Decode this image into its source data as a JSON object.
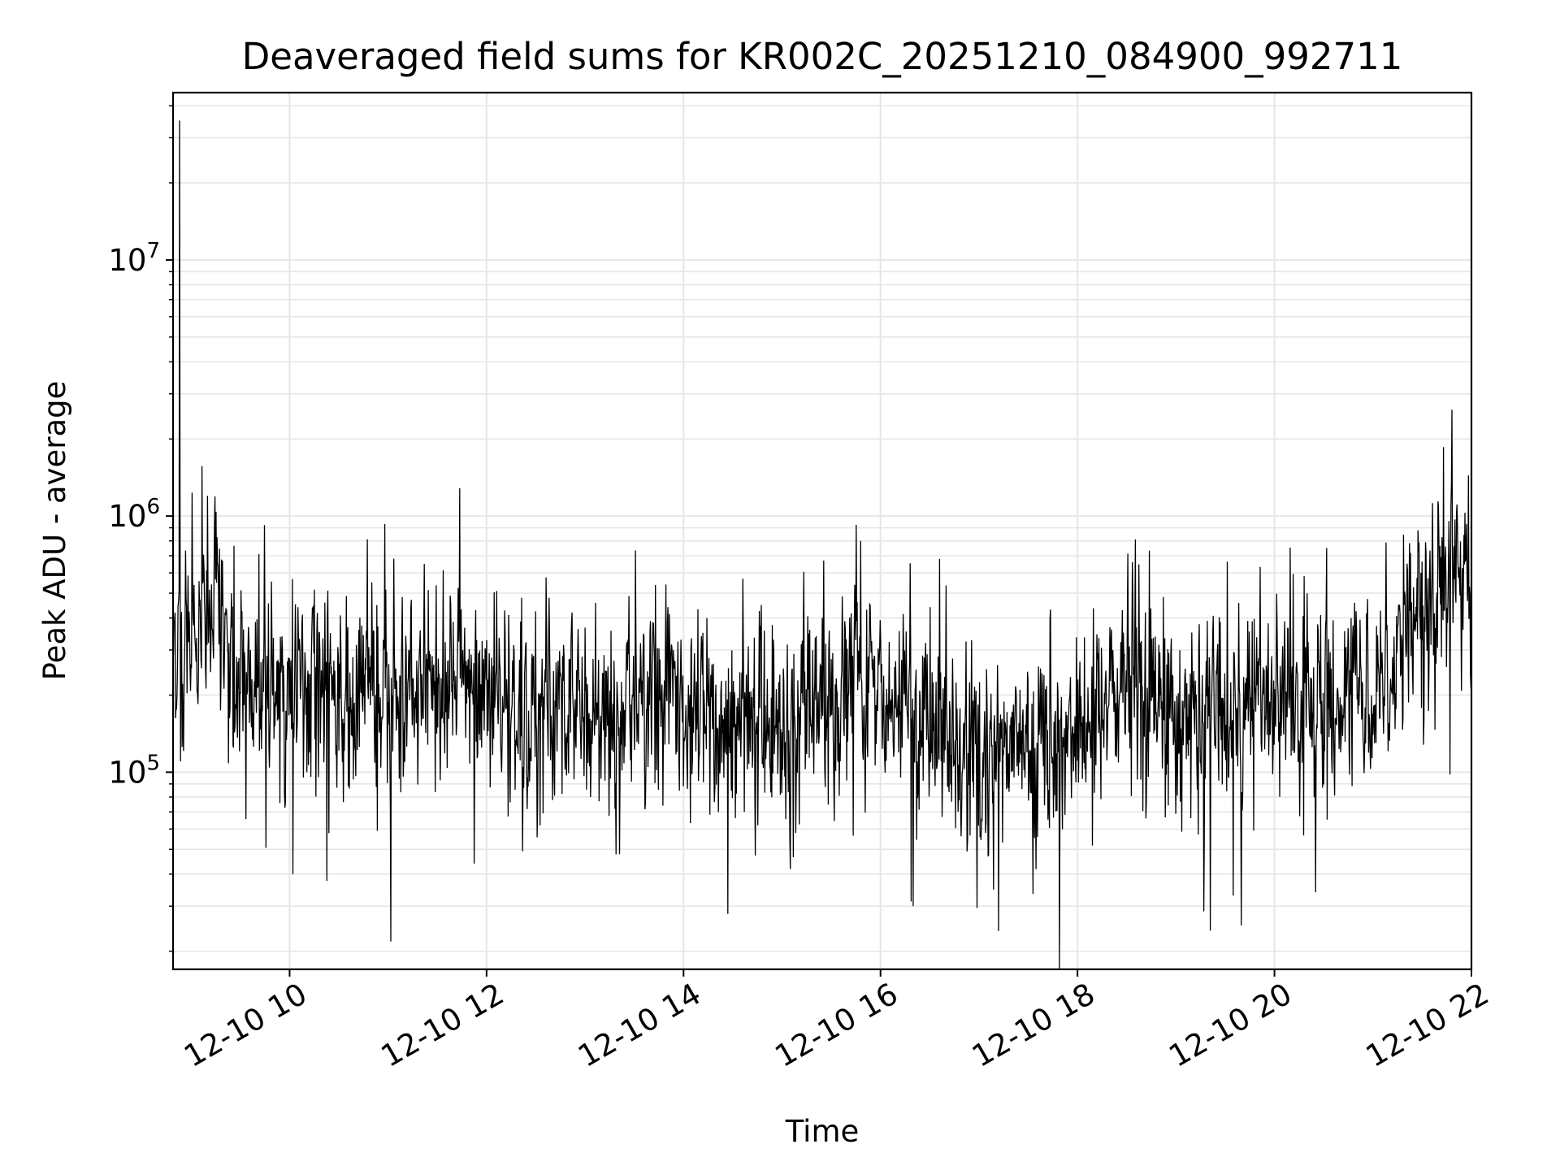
{
  "chart_data": {
    "type": "line",
    "title": "Deaveraged field sums for KR002C_20251210_084900_992711",
    "xlabel": "Time",
    "ylabel": "Peak ADU - average",
    "yscale": "log",
    "xlim": [
      "12-10 08:49",
      "12-10 22:00"
    ],
    "ylim": [
      17000,
      45000000
    ],
    "grid": true,
    "line_color": "#000000",
    "x_ticks": [
      "12-10 10",
      "12-10 12",
      "12-10 14",
      "12-10 16",
      "12-10 18",
      "12-10 20",
      "12-10 22"
    ],
    "y_ticks": [
      {
        "base": "10",
        "exp": "5",
        "value": 100000
      },
      {
        "base": "10",
        "exp": "6",
        "value": 1000000
      },
      {
        "base": "10",
        "exp": "7",
        "value": 10000000
      }
    ],
    "series": [
      {
        "x": [
          "12-10 08:49",
          "12-10 09:00",
          "12-10 09:15",
          "12-10 09:30",
          "12-10 10:00",
          "12-10 11:00",
          "12-10 12:00",
          "12-10 13:00",
          "12-10 14:00",
          "12-10 14:30",
          "12-10 15:00",
          "12-10 15:45",
          "12-10 16:30",
          "12-10 17:00",
          "12-10 17:30",
          "12-10 18:00",
          "12-10 18:30",
          "12-10 19:00",
          "12-10 19:30",
          "12-10 20:00",
          "12-10 20:30",
          "12-10 21:00",
          "12-10 21:30",
          "12-10 21:50",
          "12-10 22:00"
        ],
        "y": [
          350000,
          300000,
          400000,
          230000,
          210000,
          200000,
          190000,
          170000,
          200000,
          140000,
          150000,
          220000,
          140000,
          120000,
          130000,
          140000,
          230000,
          170000,
          160000,
          200000,
          190000,
          220000,
          400000,
          650000,
          500000
        ],
        "peaks": [
          {
            "x": "12-10 08:53",
            "y": 35000000
          },
          {
            "x": "12-10 09:10",
            "y": 1200000
          },
          {
            "x": "12-10 15:48",
            "y": 800000
          },
          {
            "x": "12-10 21:48",
            "y": 2600000
          }
        ],
        "troughs": [
          {
            "x": "12-10 10:02",
            "y": 40000
          },
          {
            "x": "12-10 14:27",
            "y": 28000
          },
          {
            "x": "12-10 16:20",
            "y": 30000
          },
          {
            "x": "12-10 17:12",
            "y": 24000
          },
          {
            "x": "12-10 19:35",
            "y": 33000
          },
          {
            "x": "12-10 20:25",
            "y": 34000
          }
        ]
      }
    ]
  }
}
